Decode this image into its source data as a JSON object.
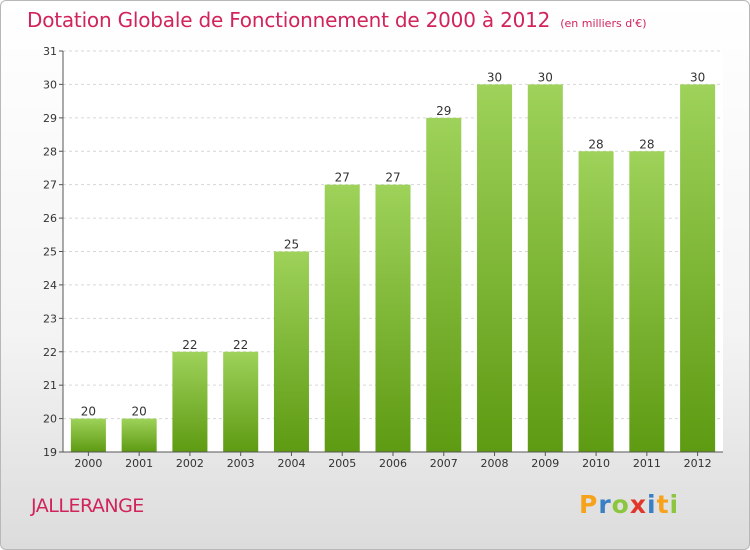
{
  "header": {
    "title": "Dotation Globale de Fonctionnement de 2000 à 2012",
    "subtitle": "(en milliers d'€)"
  },
  "footer": {
    "commune": "JALLERANGE",
    "logo_letters": [
      "P",
      "r",
      "o",
      "x",
      "i",
      "t",
      "i"
    ],
    "logo_colors": [
      "#f7a21b",
      "#3a7fc4",
      "#8cc63f",
      "#e2362b",
      "#3a7fc4",
      "#f7a21b",
      "#8cc63f"
    ]
  },
  "colors": {
    "bar_top": "#9ed25a",
    "bar_bottom": "#5e9a12",
    "title": "#d0245a",
    "grid": "#d6d6d6"
  },
  "chart_data": {
    "type": "bar",
    "categories": [
      "2000",
      "2001",
      "2002",
      "2003",
      "2004",
      "2005",
      "2006",
      "2007",
      "2008",
      "2009",
      "2010",
      "2011",
      "2012"
    ],
    "values": [
      20,
      20,
      22,
      22,
      25,
      27,
      27,
      29,
      30,
      30,
      28,
      28,
      30
    ],
    "ylim": [
      19,
      31
    ],
    "yticks": [
      19,
      20,
      21,
      22,
      23,
      24,
      25,
      26,
      27,
      28,
      29,
      30,
      31
    ],
    "grid": true,
    "xlabel": "",
    "ylabel": ""
  }
}
